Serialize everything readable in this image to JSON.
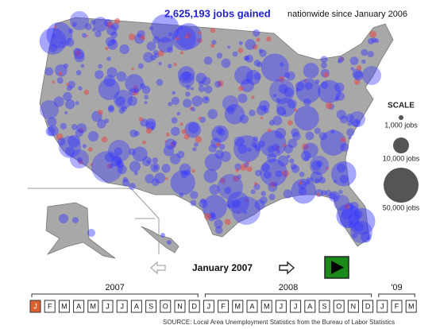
{
  "header": {
    "headline": "2,625,193 jobs gained",
    "subtitle": "nationwide since January 2006"
  },
  "scale": {
    "title": "SCALE",
    "items": [
      "1,000 jobs",
      "10,000 jobs",
      "50,000 jobs"
    ]
  },
  "controls": {
    "current": "January 2007"
  },
  "timeline": {
    "years": [
      "2007",
      "2008",
      "'09"
    ],
    "months": [
      "J",
      "F",
      "M",
      "A",
      "M",
      "J",
      "J",
      "A",
      "S",
      "O",
      "N",
      "D",
      "J",
      "F",
      "M",
      "A",
      "M",
      "J",
      "J",
      "A",
      "S",
      "O",
      "N",
      "D",
      "J",
      "F",
      "M"
    ]
  },
  "source": "SOURCE: Local Area Unemployment Statistics from the Bureau of Labor Statistics"
}
